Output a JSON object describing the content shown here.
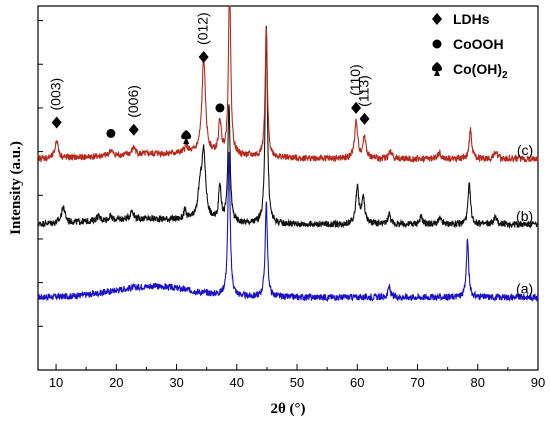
{
  "chart_data": {
    "type": "line",
    "xlabel": "2θ (°)",
    "ylabel": "Intensity (a.u.)",
    "xlim": [
      7,
      90
    ],
    "ylim": [
      0,
      100
    ],
    "xticks": [
      10,
      20,
      30,
      40,
      50,
      60,
      70,
      80,
      90
    ],
    "yticks_shown": false,
    "grid": false,
    "legend": {
      "position": "top-right",
      "entries": [
        {
          "marker": "diamond",
          "label": "LDHs"
        },
        {
          "marker": "circle",
          "label": "CoOOH"
        },
        {
          "marker": "spade",
          "label": "Co(OH)",
          "subscript": "2"
        }
      ]
    },
    "series": [
      {
        "name": "(a)",
        "color": "#1a10c8",
        "baseline": 20,
        "noise": 0.9,
        "hump": {
          "center": 26,
          "width": 9,
          "height": 3
        },
        "peaks": [
          [
            38.7,
            40,
            0.22
          ],
          [
            44.9,
            26,
            0.22
          ],
          [
            65.3,
            3,
            0.22
          ],
          [
            78.3,
            16,
            0.22
          ]
        ]
      },
      {
        "name": "(b)",
        "color": "#111111",
        "baseline": 40,
        "noise": 0.9,
        "hump": {
          "center": 25,
          "width": 12,
          "height": 1.5
        },
        "peaks": [
          [
            11.2,
            4.5,
            0.35
          ],
          [
            17.0,
            1.2,
            0.4
          ],
          [
            19.0,
            1,
            0.3
          ],
          [
            22.6,
            2.5,
            0.3
          ],
          [
            31.4,
            2.5,
            0.25
          ],
          [
            33.9,
            7,
            0.4
          ],
          [
            34.5,
            18,
            0.4
          ],
          [
            37.2,
            10,
            0.25
          ],
          [
            38.7,
            32,
            0.22
          ],
          [
            44.9,
            55,
            0.22
          ],
          [
            60.0,
            10,
            0.3
          ],
          [
            61.0,
            7,
            0.3
          ],
          [
            65.3,
            3,
            0.25
          ],
          [
            70.6,
            2,
            0.3
          ],
          [
            73.7,
            1.5,
            0.3
          ],
          [
            78.6,
            11,
            0.25
          ],
          [
            82.9,
            2,
            0.3
          ]
        ]
      },
      {
        "name": "(c)",
        "color": "#b52a1c",
        "baseline": 58,
        "noise": 0.9,
        "hump": {
          "center": 30,
          "width": 14,
          "height": 1.5
        },
        "peaks": [
          [
            10.1,
            5,
            0.3
          ],
          [
            19.1,
            1.5,
            0.35
          ],
          [
            22.9,
            2,
            0.35
          ],
          [
            31.6,
            2,
            0.3
          ],
          [
            34.5,
            26,
            0.35
          ],
          [
            37.2,
            9,
            0.25
          ],
          [
            38.8,
            48,
            0.22
          ],
          [
            44.9,
            35,
            0.22
          ],
          [
            59.8,
            10,
            0.3
          ],
          [
            61.2,
            6,
            0.3
          ],
          [
            65.5,
            2,
            0.3
          ],
          [
            73.6,
            1.5,
            0.3
          ],
          [
            78.8,
            8,
            0.25
          ],
          [
            83.0,
            2,
            0.3
          ]
        ]
      }
    ],
    "annotations": [
      {
        "text": "(003)",
        "x": 10.1,
        "marker": "diamond"
      },
      {
        "text": "(006)",
        "x": 22.9,
        "marker": "diamond"
      },
      {
        "text": "(012)",
        "x": 34.5,
        "marker": "diamond"
      },
      {
        "text": "(110)",
        "x": 59.8,
        "marker": "diamond"
      },
      {
        "text": "(113)",
        "x": 61.2,
        "marker": "diamond"
      },
      {
        "text": "",
        "x": 19.1,
        "marker": "circle"
      },
      {
        "text": "",
        "x": 37.2,
        "marker": "circle"
      },
      {
        "text": "",
        "x": 31.6,
        "marker": "spade"
      }
    ]
  }
}
